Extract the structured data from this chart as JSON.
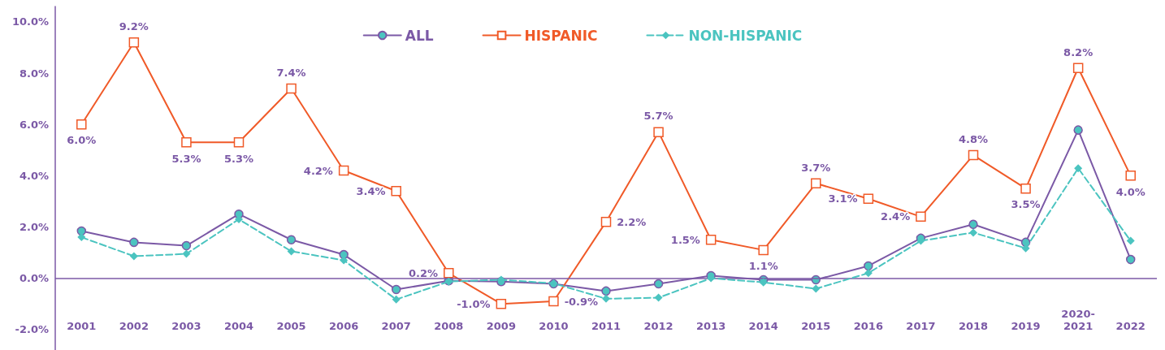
{
  "chart_data": {
    "type": "line",
    "categories": [
      "2001",
      "2002",
      "2003",
      "2004",
      "2005",
      "2006",
      "2007",
      "2008",
      "2009",
      "2010",
      "2011",
      "2012",
      "2013",
      "2014",
      "2015",
      "2016",
      "2017",
      "2018",
      "2019",
      "2020-\n2021",
      "2022"
    ],
    "series": [
      {
        "name": "ALL",
        "color": "#7b59a6",
        "marker": "circle",
        "line_style": "solid",
        "values": [
          1.84,
          1.4,
          1.27,
          2.5,
          1.5,
          0.92,
          -0.44,
          -0.1,
          -0.13,
          -0.22,
          -0.5,
          -0.22,
          0.1,
          -0.06,
          -0.06,
          0.48,
          1.56,
          2.1,
          1.4,
          5.78,
          0.73
        ]
      },
      {
        "name": "HISPANIC",
        "color": "#f05a28",
        "marker": "square",
        "line_style": "solid",
        "values": [
          6.0,
          9.2,
          5.3,
          5.3,
          7.4,
          4.2,
          3.4,
          0.2,
          -1.0,
          -0.9,
          2.2,
          5.7,
          1.5,
          1.1,
          3.7,
          3.1,
          2.4,
          4.8,
          3.5,
          8.2,
          4.0
        ],
        "value_labels": [
          "6.0%",
          "9.2%",
          "5.3%",
          "5.3%",
          "7.4%",
          "4.2%",
          "3.4%",
          "0.2%",
          "-1.0%",
          "-0.9%",
          "2.2%",
          "5.7%",
          "1.5%",
          "1.1%",
          "3.7%",
          "3.1%",
          "2.4%",
          "4.8%",
          "3.5%",
          "8.2%",
          "4.0%"
        ]
      },
      {
        "name": "NON-HISPANIC",
        "color": "#4bc4c0",
        "marker": "diamond",
        "line_style": "dashed",
        "values": [
          1.6,
          0.86,
          0.95,
          2.3,
          1.05,
          0.7,
          -0.83,
          -0.13,
          -0.06,
          -0.2,
          -0.8,
          -0.76,
          0,
          -0.16,
          -0.41,
          0.2,
          1.46,
          1.78,
          1.17,
          4.29,
          1.46
        ]
      }
    ],
    "ylim": [
      -2.8,
      10.6
    ],
    "yticks": [
      {
        "value": -2,
        "label": "-2.0%"
      },
      {
        "value": 0,
        "label": "0.0%"
      },
      {
        "value": 2,
        "label": "2.0%"
      },
      {
        "value": 4,
        "label": "4.0%"
      },
      {
        "value": 6,
        "label": "6.0%"
      },
      {
        "value": 8,
        "label": "8.0%"
      },
      {
        "value": 10,
        "label": "10.0%"
      }
    ],
    "ref_lines": [
      {
        "axis": "y",
        "value": 0,
        "color": "#7b59a6"
      }
    ],
    "grid": false,
    "legend": "top"
  }
}
